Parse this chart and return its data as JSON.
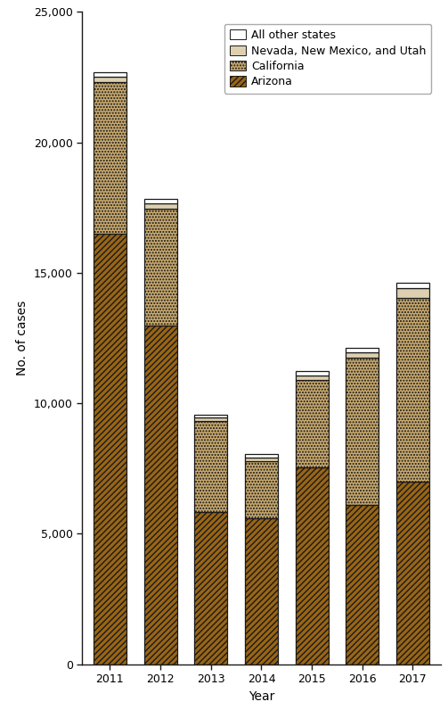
{
  "years": [
    2011,
    2012,
    2013,
    2014,
    2015,
    2016,
    2017
  ],
  "arizona": [
    16490,
    12970,
    5820,
    5600,
    7540,
    6100,
    7000
  ],
  "california": [
    5810,
    4500,
    3490,
    2200,
    3360,
    5650,
    7050
  ],
  "nv_nm_ut": [
    200,
    175,
    145,
    135,
    175,
    195,
    369
  ],
  "other": [
    200,
    175,
    120,
    130,
    145,
    175,
    189
  ],
  "color_arizona": "#996515",
  "color_california": "#C8A96E",
  "color_nv_nm_ut": "#DDD0B0",
  "color_other": "#FFFFFF",
  "color_edgecolor": "#1a1a1a",
  "hatch_arizona": "///",
  "hatch_california": "...",
  "hatch_nv_nm_ut": "",
  "hatch_other": "",
  "ylim": [
    0,
    25000
  ],
  "yticks": [
    0,
    5000,
    10000,
    15000,
    20000,
    25000
  ],
  "ylabel": "No. of cases",
  "xlabel": "Year",
  "legend_labels": [
    "All other states",
    "Nevada, New Mexico, and Utah",
    "California",
    "Arizona"
  ],
  "axis_fontsize": 10,
  "tick_fontsize": 9,
  "legend_fontsize": 9,
  "bar_width": 0.65,
  "figsize": [
    5.03,
    7.96
  ],
  "dpi": 100
}
